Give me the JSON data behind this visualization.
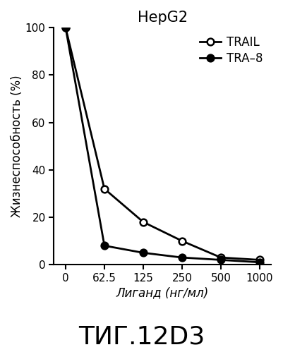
{
  "title": "HepG2",
  "xlabel": "Лиганд (нг/мл)",
  "ylabel": "Жизнеспособность (%)",
  "footnote": "ΤИГ.12D3",
  "x_values": [
    0,
    1,
    2,
    3,
    4,
    5
  ],
  "trail_y": [
    100,
    32,
    18,
    10,
    3,
    2
  ],
  "tra8_y": [
    100,
    8,
    5,
    3,
    2,
    1
  ],
  "trail_label": "TRAIL",
  "tra8_label": "TRA–8",
  "ylim": [
    0,
    100
  ],
  "yticks": [
    0,
    20,
    40,
    60,
    80,
    100
  ],
  "xtick_labels": [
    "0",
    "62.5",
    "125",
    "250",
    "500",
    "1000"
  ],
  "background_color": "#ffffff",
  "line_color": "#000000",
  "linewidth": 2.0,
  "markersize": 7,
  "title_fontsize": 15,
  "label_fontsize": 12,
  "tick_fontsize": 11,
  "legend_fontsize": 12,
  "footnote_fontsize": 26
}
